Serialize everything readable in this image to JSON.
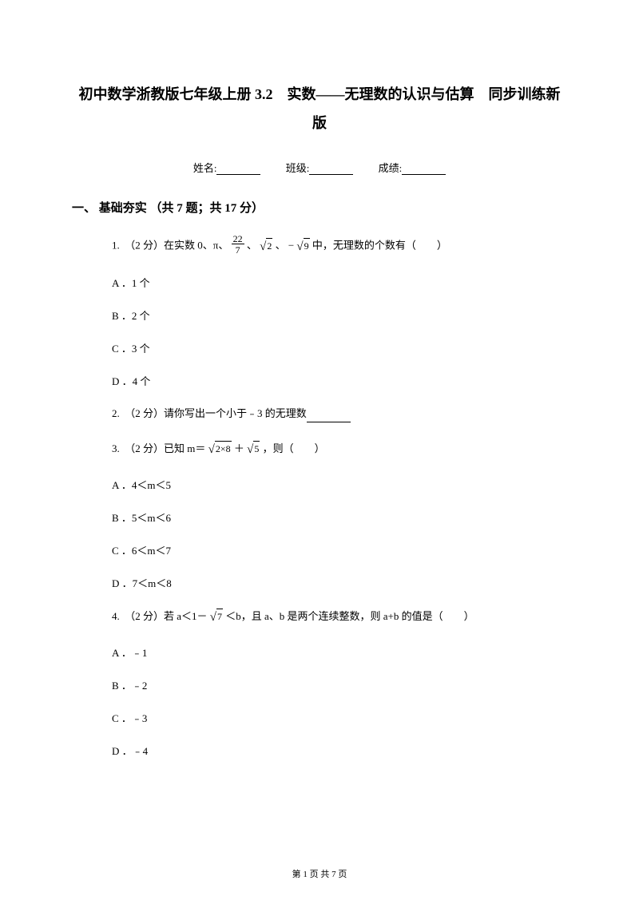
{
  "title": "初中数学浙教版七年级上册 3.2　实数——无理数的认识与估算　同步训练新版",
  "info": {
    "name_label": "姓名:",
    "class_label": "班级:",
    "score_label": "成绩:"
  },
  "section": {
    "heading": "一、 基础夯实 （共 7 题；共 17 分）"
  },
  "q1": {
    "stem_prefix": "1.　（2 分）在实数 0、π、",
    "frac_num": "22",
    "frac_den": "7",
    "sep1": " 、",
    "sqrt2": "2",
    "sep2": " 、 −",
    "sqrt9": "9",
    "stem_suffix": " 中，无理数的个数有（　　）",
    "optA": "A ．1 个",
    "optB": "B ．2 个",
    "optC": "C ．3 个",
    "optD": "D ．4 个"
  },
  "q2": {
    "stem": "2.　（2 分）请你写出一个小于﹣3 的无理数"
  },
  "q3": {
    "stem_prefix": "3.　（2 分）已知 m＝ ",
    "sqrt1": "2×8",
    "plus": " ＋ ",
    "sqrt2": "5",
    "stem_suffix": " ，则（　　）",
    "optA": "A ．4＜m＜5",
    "optB": "B ．5＜m＜6",
    "optC": "C ．6＜m＜7",
    "optD": "D ．7＜m＜8"
  },
  "q4": {
    "stem_prefix": "4.　（2 分）若 a＜1－ ",
    "sqrt7": "7",
    "stem_suffix": " ＜b，且 a、b 是两个连续整数，则 a+b 的值是（　　）",
    "optA": "A ．﹣1",
    "optB": "B ．﹣2",
    "optC": "C ．﹣3",
    "optD": "D ．﹣4"
  },
  "footer": {
    "page_prefix": "第 ",
    "page_num": "1",
    "page_mid": " 页 共 ",
    "page_total": "7",
    "page_suffix": " 页"
  }
}
